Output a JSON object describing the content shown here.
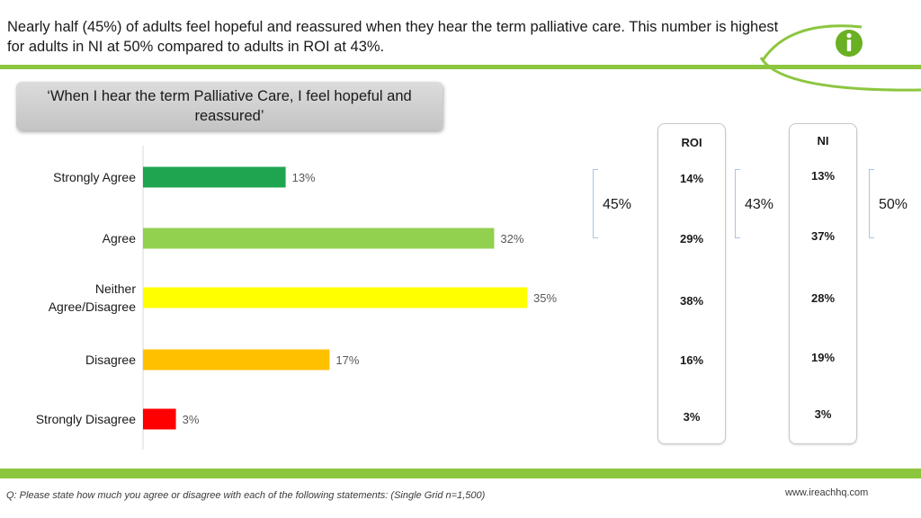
{
  "header": {
    "text": "Nearly half (45%) of adults feel hopeful and reassured when they hear the term palliative care. This number is highest for adults in NI at 50% compared to adults in ROI at 43%."
  },
  "statement": "‘When I hear the term Palliative Care, I feel hopeful and reassured’",
  "colors": {
    "accent_green": "#8cc63f",
    "logo_green": "#6ab023"
  },
  "chart_data": {
    "type": "bar",
    "orientation": "horizontal",
    "categories": [
      "Strongly Agree",
      "Agree",
      "Neither Agree/Disagree",
      "Disagree",
      "Strongly Disagree"
    ],
    "values": [
      13,
      32,
      35,
      17,
      3
    ],
    "value_labels": [
      "13%",
      "32%",
      "35%",
      "17%",
      "3%"
    ],
    "colors": [
      "#1fa550",
      "#92d050",
      "#ffff00",
      "#ffc000",
      "#ff0000"
    ],
    "xlim": [
      0,
      35
    ]
  },
  "total_overall": "45%",
  "regions": {
    "roi": {
      "title": "ROI",
      "values": [
        "14%",
        "29%",
        "38%",
        "16%",
        "3%"
      ],
      "total": "43%"
    },
    "ni": {
      "title": "NI",
      "values": [
        "13%",
        "37%",
        "28%",
        "19%",
        "3%"
      ],
      "total": "50%"
    }
  },
  "footer": {
    "question": "Q: Please state how much you agree or disagree with each of the following statements: (Single Grid n=1,500)",
    "url": "www.ireachhq.com"
  }
}
